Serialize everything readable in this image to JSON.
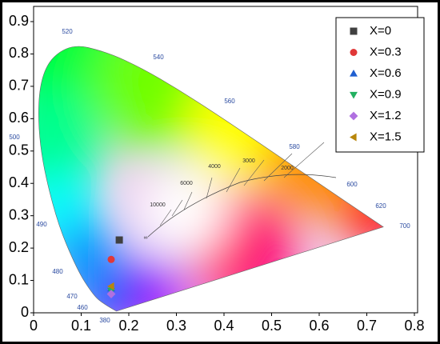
{
  "chart_data": {
    "type": "scatter",
    "xlim": [
      0,
      0.8
    ],
    "ylim": [
      0,
      0.9
    ],
    "xticks": [
      0,
      0.1,
      0.2,
      0.3,
      0.4,
      0.5,
      0.6,
      0.7,
      0.8
    ],
    "yticks": [
      0,
      0.1,
      0.2,
      0.3,
      0.4,
      0.5,
      0.6,
      0.7,
      0.8,
      0.9
    ],
    "legend": "upper right",
    "wavelength_labels": [
      "520",
      "540",
      "560",
      "580",
      "600",
      "620",
      "700",
      "500",
      "490",
      "480",
      "470",
      "460",
      "380"
    ],
    "cct_labels": [
      "10000",
      "6000",
      "4000",
      "3000",
      "2000",
      "∞"
    ],
    "series": [
      {
        "name": "X=0",
        "color": "#404040",
        "marker": "square",
        "x": [
          0.18
        ],
        "values": [
          0.225
        ]
      },
      {
        "name": "X=0.3",
        "color": "#e03838",
        "marker": "circle",
        "x": [
          0.163
        ],
        "values": [
          0.165
        ]
      },
      {
        "name": "X=0.6",
        "color": "#1f5fd0",
        "marker": "triangle-up",
        "x": [
          0.163
        ],
        "values": [
          0.075
        ]
      },
      {
        "name": "X=0.9",
        "color": "#22b060",
        "marker": "triangle-down",
        "x": [
          0.163
        ],
        "values": [
          0.068
        ]
      },
      {
        "name": "X=1.2",
        "color": "#b070e0",
        "marker": "diamond",
        "x": [
          0.163
        ],
        "values": [
          0.058
        ]
      },
      {
        "name": "X=1.5",
        "color": "#b8860b",
        "marker": "triangle-left",
        "x": [
          0.163
        ],
        "values": [
          0.082
        ]
      }
    ]
  }
}
